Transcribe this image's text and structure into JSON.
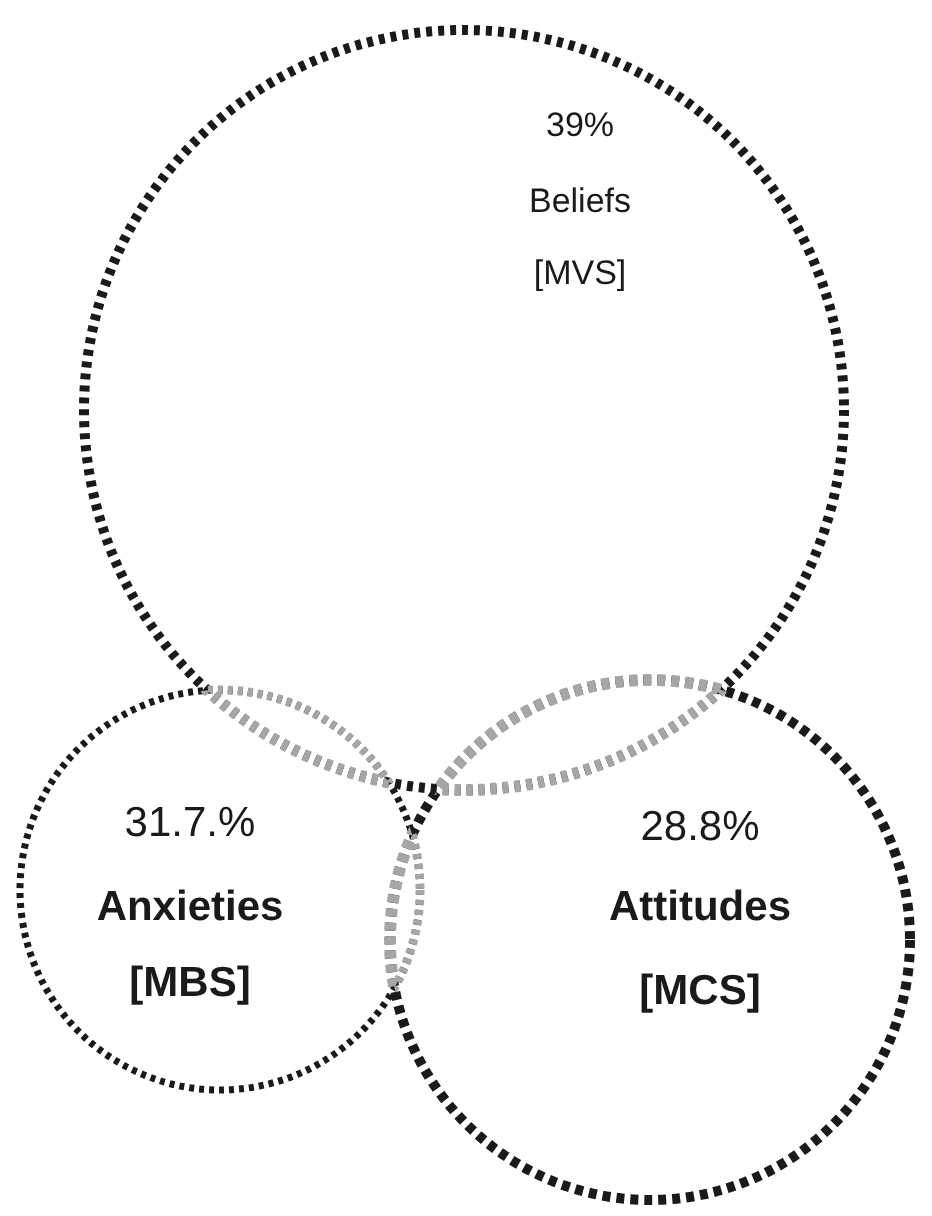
{
  "chart_data": {
    "type": "other",
    "categories": [
      "Beliefs [MVS]",
      "Anxieties [MBS]",
      "Attitudes [MCS]"
    ],
    "values": [
      39,
      31.7,
      28.8
    ],
    "value_labels": [
      "39%",
      "31.7.%",
      "28.8%"
    ],
    "colors": [
      "#1a1a1a",
      "#1a1a1a",
      "#1a1a1a"
    ]
  }
}
